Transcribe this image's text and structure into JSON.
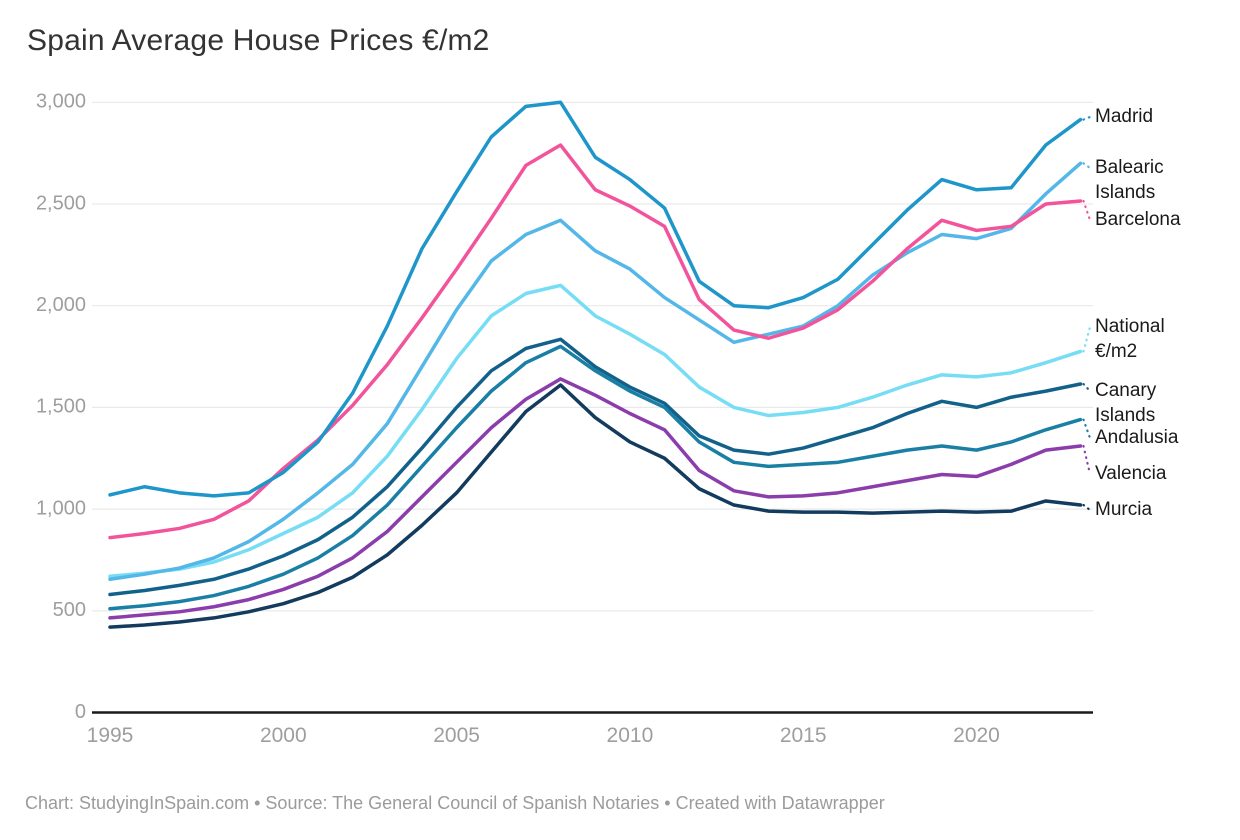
{
  "title": "Spain Average House Prices €/m2",
  "footer": "Chart: StudyingInSpain.com • Source: The General Council of Spanish Notaries • Created with Datawrapper",
  "colors": {
    "background": "#ffffff",
    "title_text": "#333333",
    "tick_text": "#9e9e9e",
    "gridline": "#e9e9e9",
    "zero_axis": "#1a1a1a",
    "label_text": "#1a1a1a",
    "footer_text": "#9b9b9b"
  },
  "chart_data": {
    "type": "line",
    "title": "Spain Average House Prices €/m2",
    "xlabel": "",
    "ylabel": "€/m2",
    "x": [
      1995,
      1996,
      1997,
      1998,
      1999,
      2000,
      2001,
      2002,
      2003,
      2004,
      2005,
      2006,
      2007,
      2008,
      2009,
      2010,
      2011,
      2012,
      2013,
      2014,
      2015,
      2016,
      2017,
      2018,
      2019,
      2020,
      2021,
      2022,
      2023
    ],
    "x_ticks": [
      1995,
      2000,
      2005,
      2010,
      2015,
      2020
    ],
    "ylim": [
      0,
      3000
    ],
    "y_tick_values": [
      3000,
      2500,
      2000,
      1500,
      1000,
      500,
      0
    ],
    "y_tick_labels": [
      "3,000",
      "2,500",
      "2,000",
      "1,500",
      "1,000",
      "500",
      "0"
    ],
    "grid": true,
    "legend_position": "right-direct-labels",
    "series": [
      {
        "name": "National €/m2",
        "slug": "national-eur-m2",
        "label": "National\n€/m2",
        "label_y": 327,
        "color": "#76DDF4",
        "values": [
          670,
          685,
          705,
          740,
          800,
          880,
          960,
          1080,
          1260,
          1490,
          1740,
          1950,
          2060,
          2100,
          1950,
          1860,
          1760,
          1600,
          1500,
          1460,
          1475,
          1500,
          1550,
          1610,
          1660,
          1650,
          1670,
          1720,
          1775
        ]
      },
      {
        "name": "Balearic Islands",
        "slug": "balearic-islands",
        "label": "Balearic\nIslands",
        "label_y": 168,
        "color": "#53B7E8",
        "values": [
          655,
          680,
          710,
          760,
          840,
          950,
          1080,
          1220,
          1420,
          1700,
          1980,
          2220,
          2350,
          2420,
          2270,
          2180,
          2040,
          1930,
          1820,
          1860,
          1900,
          2000,
          2150,
          2260,
          2350,
          2330,
          2380,
          2550,
          2700
        ]
      },
      {
        "name": "Barcelona",
        "slug": "barcelona",
        "label": "Barcelona",
        "label_y": 220,
        "color": "#F2549C",
        "values": [
          860,
          880,
          905,
          950,
          1040,
          1200,
          1340,
          1510,
          1710,
          1940,
          2180,
          2430,
          2690,
          2790,
          2570,
          2490,
          2390,
          2030,
          1880,
          1840,
          1890,
          1980,
          2120,
          2280,
          2420,
          2370,
          2390,
          2500,
          2515
        ]
      },
      {
        "name": "Madrid",
        "slug": "madrid",
        "label": "Madrid",
        "label_y": 117,
        "color": "#1E96C9",
        "values": [
          1070,
          1110,
          1080,
          1065,
          1080,
          1180,
          1330,
          1570,
          1900,
          2280,
          2560,
          2830,
          2980,
          3000,
          2730,
          2620,
          2480,
          2120,
          2000,
          1990,
          2040,
          2130,
          2300,
          2470,
          2620,
          2570,
          2580,
          2790,
          2915
        ]
      },
      {
        "name": "Canary Islands",
        "slug": "canary-islands",
        "label": "Canary\nIslands",
        "label_y": 391,
        "color": "#12618A",
        "values": [
          580,
          600,
          625,
          655,
          705,
          770,
          850,
          960,
          1110,
          1300,
          1500,
          1680,
          1790,
          1835,
          1700,
          1600,
          1520,
          1360,
          1290,
          1270,
          1300,
          1350,
          1400,
          1470,
          1530,
          1500,
          1550,
          1580,
          1615
        ]
      },
      {
        "name": "Andalusia",
        "slug": "andalusia",
        "label": "Andalusia",
        "label_y": 438,
        "color": "#1A7FA4",
        "values": [
          510,
          525,
          545,
          575,
          620,
          680,
          760,
          870,
          1020,
          1210,
          1400,
          1580,
          1720,
          1800,
          1680,
          1580,
          1500,
          1330,
          1230,
          1210,
          1220,
          1230,
          1260,
          1290,
          1310,
          1290,
          1330,
          1390,
          1440
        ]
      },
      {
        "name": "Valencia",
        "slug": "valencia",
        "label": "Valencia",
        "label_y": 474,
        "color": "#8A3DAB",
        "values": [
          465,
          480,
          495,
          520,
          555,
          605,
          670,
          760,
          890,
          1060,
          1230,
          1400,
          1540,
          1640,
          1560,
          1470,
          1390,
          1190,
          1090,
          1060,
          1065,
          1080,
          1110,
          1140,
          1170,
          1160,
          1220,
          1290,
          1310
        ]
      },
      {
        "name": "Murcia",
        "slug": "murcia",
        "label": "Murcia",
        "label_y": 510,
        "color": "#123B5D",
        "values": [
          420,
          430,
          445,
          465,
          495,
          535,
          590,
          665,
          775,
          920,
          1080,
          1280,
          1480,
          1610,
          1450,
          1330,
          1250,
          1100,
          1020,
          990,
          985,
          985,
          980,
          985,
          990,
          985,
          990,
          1040,
          1020
        ]
      }
    ]
  }
}
